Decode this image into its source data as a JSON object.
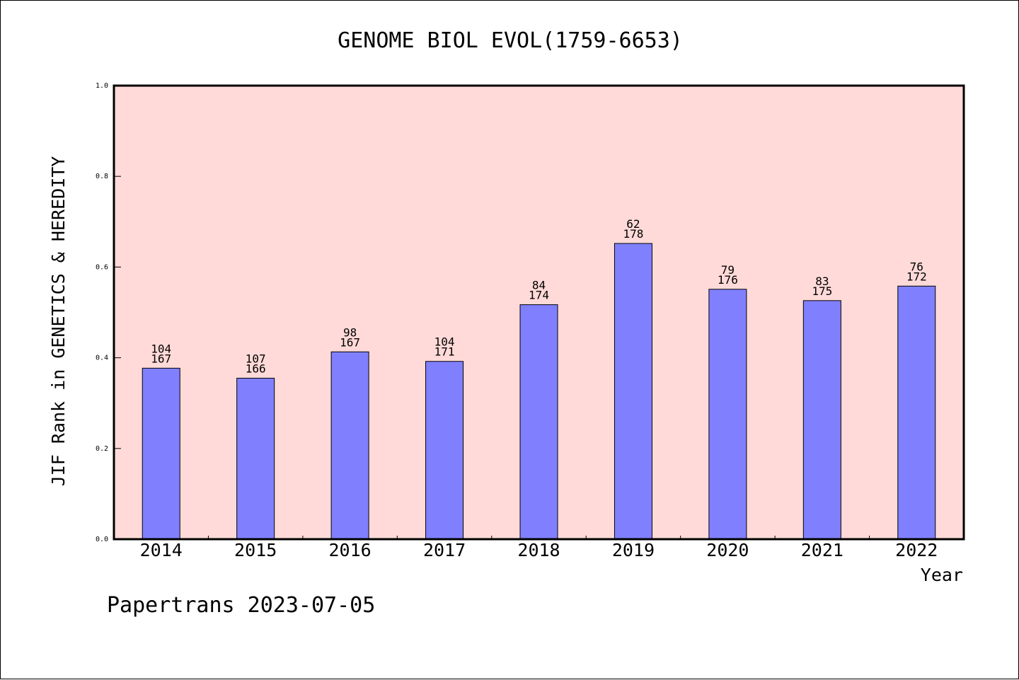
{
  "chart_data": {
    "type": "bar",
    "title": "GENOME BIOL EVOL(1759-6653)",
    "xlabel": "Year",
    "ylabel": "JIF Rank in GENETICS & HEREDITY",
    "ylim": [
      0,
      1.0
    ],
    "yticks": [
      "0.0",
      "0.2",
      "0.4",
      "0.6",
      "0.8",
      "1.0"
    ],
    "categories": [
      "2014",
      "2015",
      "2016",
      "2017",
      "2018",
      "2019",
      "2020",
      "2021",
      "2022"
    ],
    "values": [
      0.377,
      0.355,
      0.413,
      0.392,
      0.517,
      0.652,
      0.551,
      0.526,
      0.558
    ],
    "rank": [
      "104",
      "107",
      "98",
      "104",
      "84",
      "62",
      "79",
      "83",
      "76"
    ],
    "total": [
      "167",
      "166",
      "167",
      "171",
      "174",
      "178",
      "176",
      "175",
      "172"
    ],
    "grid": false,
    "colors": {
      "plot_background": "#ffdad8",
      "bar_fill": "#8080ff",
      "bar_stroke": "#000000"
    }
  },
  "footer": {
    "text": "Papertrans 2023-07-05"
  }
}
